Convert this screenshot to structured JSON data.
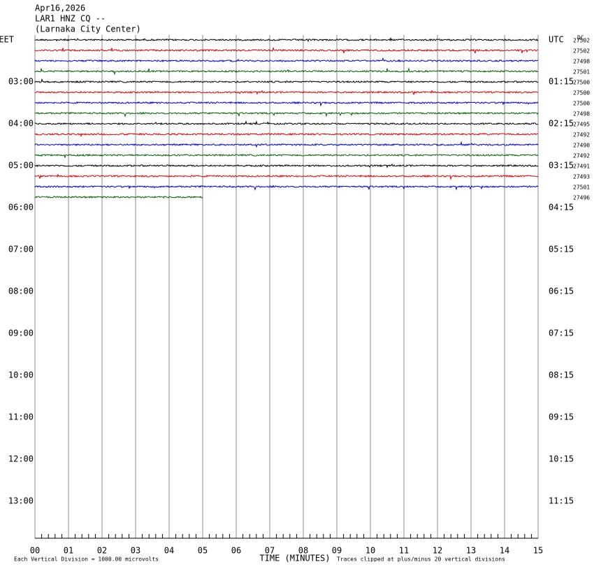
{
  "header": {
    "date": "Apr16,2026",
    "station": "LAR1 HNZ CQ --",
    "location": "(Larnaka City Center)"
  },
  "left_axis": {
    "title": "EET",
    "labels": [
      "03:00",
      "04:00",
      "05:00",
      "06:00",
      "07:00",
      "08:00",
      "09:00",
      "10:00",
      "11:00",
      "12:00",
      "13:00"
    ]
  },
  "right_axis": {
    "title": "UTC",
    "labels": [
      "01:15",
      "02:15",
      "03:15",
      "04:15",
      "05:15",
      "06:15",
      "07:15",
      "08:15",
      "09:15",
      "10:15",
      "11:15"
    ],
    "dc_title": "DC"
  },
  "traces": {
    "colors": [
      "#000000",
      "#e00000",
      "#0000c8",
      "#006400"
    ],
    "dc_values": [
      27502,
      27502,
      27498,
      27501,
      27500,
      27500,
      27500,
      27498,
      27495,
      27492,
      27490,
      27492,
      27491,
      27493,
      27501,
      27496
    ],
    "last_end_minute": 5
  },
  "x_axis": {
    "ticks": [
      "00",
      "01",
      "02",
      "03",
      "04",
      "05",
      "06",
      "07",
      "08",
      "09",
      "10",
      "11",
      "12",
      "13",
      "14",
      "15"
    ],
    "title": "TIME (MINUTES)",
    "minor_per_major": 5
  },
  "footer": {
    "scale": "Each Vertical Division = 1000.00 microvolts",
    "clipping": "Traces clipped at plus/minus 20 vertical divisions"
  }
}
